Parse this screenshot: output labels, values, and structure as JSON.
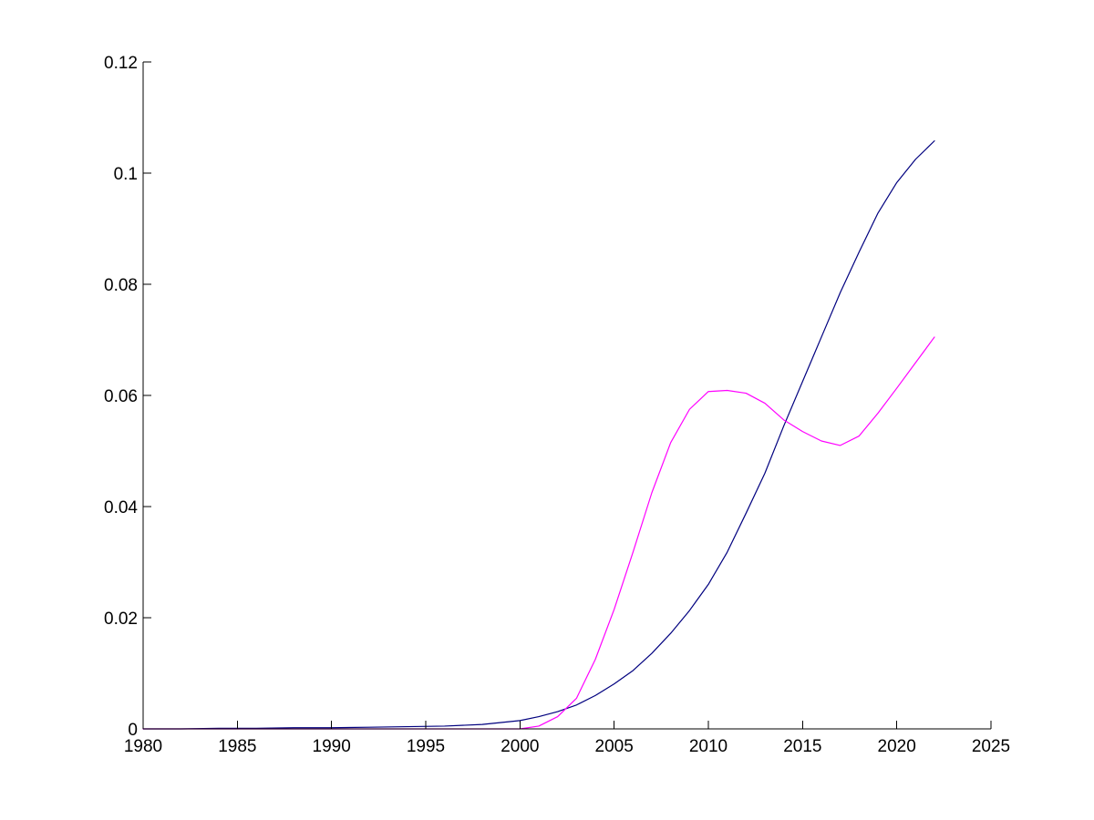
{
  "chart_data": {
    "type": "line",
    "title": "",
    "xlabel": "",
    "ylabel": "",
    "xlim": [
      1980,
      2025
    ],
    "ylim": [
      0,
      0.12
    ],
    "x_ticks": [
      1980,
      1985,
      1990,
      1995,
      2000,
      2005,
      2010,
      2015,
      2020,
      2025
    ],
    "x_tick_labels": [
      "1980",
      "1985",
      "1990",
      "1995",
      "2000",
      "2005",
      "2010",
      "2015",
      "2020",
      "2025"
    ],
    "y_ticks": [
      0,
      0.02,
      0.04,
      0.06,
      0.08,
      0.1,
      0.12
    ],
    "y_tick_labels": [
      "0",
      "0.02",
      "0.04",
      "0.06",
      "0.08",
      "0.1",
      "0.12"
    ],
    "grid": false,
    "legend": "none",
    "series": [
      {
        "color": "#00007f",
        "x": [
          1980,
          1982,
          1984,
          1986,
          1988,
          1990,
          1992,
          1994,
          1996,
          1998,
          2000,
          2001,
          2002,
          2003,
          2004,
          2005,
          2006,
          2007,
          2008,
          2009,
          2010,
          2011,
          2012,
          2013,
          2014,
          2015,
          2016,
          2017,
          2018,
          2019,
          2020,
          2021,
          2022
        ],
        "y": [
          0.0,
          0.0,
          0.0001,
          0.0001,
          0.0002,
          0.0002,
          0.0003,
          0.0004,
          0.0005,
          0.0008,
          0.0015,
          0.0022,
          0.0031,
          0.0043,
          0.006,
          0.0081,
          0.0105,
          0.0136,
          0.0172,
          0.0213,
          0.026,
          0.0318,
          0.0388,
          0.046,
          0.0545,
          0.0625,
          0.0705,
          0.0785,
          0.0858,
          0.0928,
          0.0983,
          0.1025,
          0.1058
        ]
      },
      {
        "color": "#ff00ff",
        "x": [
          1980,
          1984,
          1988,
          1992,
          1996,
          2000,
          2001,
          2002,
          2003,
          2004,
          2005,
          2006,
          2007,
          2008,
          2009,
          2010,
          2011,
          2012,
          2013,
          2014,
          2015,
          2016,
          2017,
          2018,
          2019,
          2020,
          2021,
          2022
        ],
        "y": [
          0.0,
          0.0,
          0.0,
          0.0,
          0.0,
          0.0,
          0.0005,
          0.0022,
          0.0055,
          0.0125,
          0.0215,
          0.0318,
          0.0425,
          0.0515,
          0.0575,
          0.0607,
          0.0609,
          0.0604,
          0.0586,
          0.0556,
          0.0535,
          0.0518,
          0.051,
          0.0527,
          0.0568,
          0.0613,
          0.0659,
          0.0705
        ]
      }
    ]
  }
}
